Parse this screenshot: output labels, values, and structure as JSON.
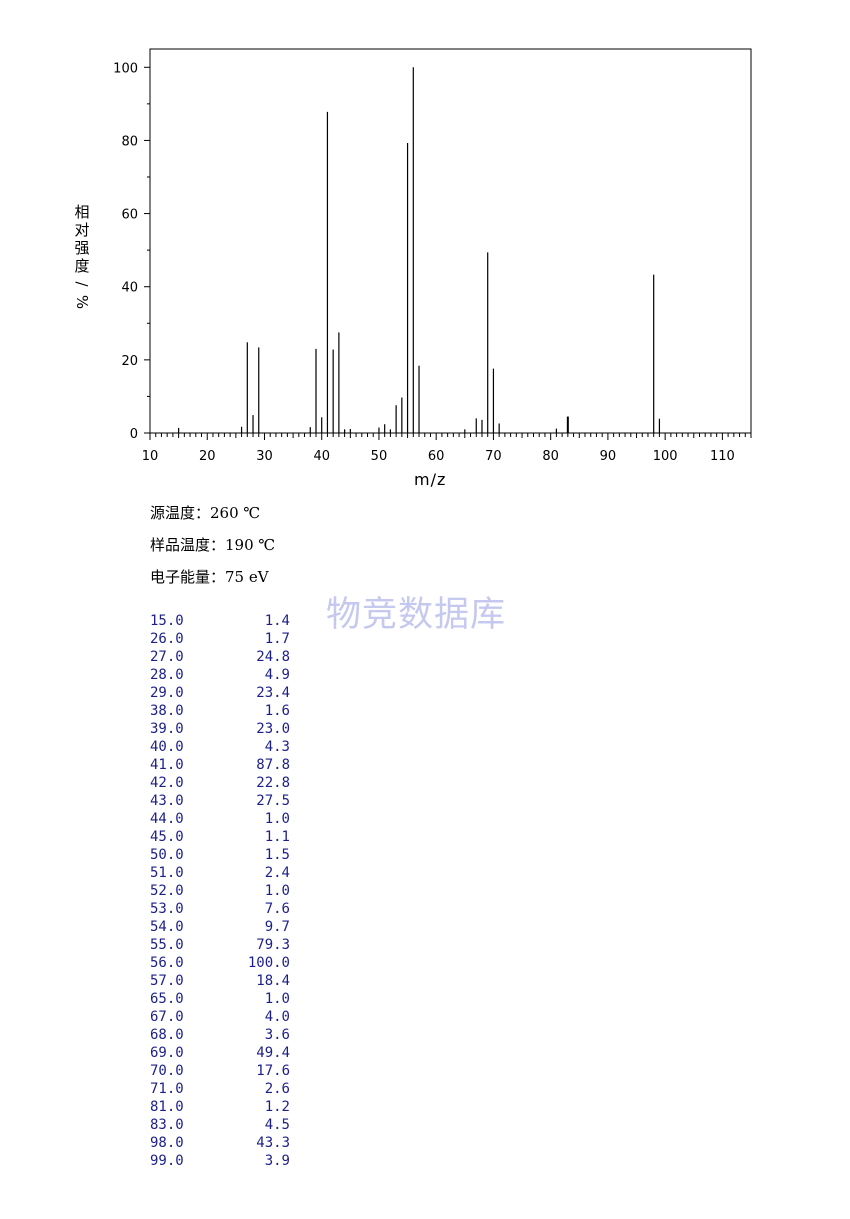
{
  "chart_data": {
    "type": "bar",
    "xlabel": "m/z",
    "ylabel": "相对强度/%",
    "xlim": [
      10,
      115
    ],
    "ylim": [
      0,
      105
    ],
    "xticks": [
      10,
      20,
      30,
      40,
      50,
      60,
      70,
      80,
      90,
      100,
      110
    ],
    "yticks": [
      0,
      20,
      40,
      60,
      80,
      100
    ],
    "peaks": [
      {
        "x": 15.0,
        "y": 1.4
      },
      {
        "x": 26.0,
        "y": 1.7
      },
      {
        "x": 27.0,
        "y": 24.8
      },
      {
        "x": 28.0,
        "y": 4.9
      },
      {
        "x": 29.0,
        "y": 23.4
      },
      {
        "x": 38.0,
        "y": 1.6
      },
      {
        "x": 39.0,
        "y": 23.0
      },
      {
        "x": 40.0,
        "y": 4.3
      },
      {
        "x": 41.0,
        "y": 87.8
      },
      {
        "x": 42.0,
        "y": 22.8
      },
      {
        "x": 43.0,
        "y": 27.5
      },
      {
        "x": 44.0,
        "y": 1.0
      },
      {
        "x": 45.0,
        "y": 1.1
      },
      {
        "x": 50.0,
        "y": 1.5
      },
      {
        "x": 51.0,
        "y": 2.4
      },
      {
        "x": 52.0,
        "y": 1.0
      },
      {
        "x": 53.0,
        "y": 7.6
      },
      {
        "x": 54.0,
        "y": 9.7
      },
      {
        "x": 55.0,
        "y": 79.3
      },
      {
        "x": 56.0,
        "y": 100.0
      },
      {
        "x": 57.0,
        "y": 18.4
      },
      {
        "x": 65.0,
        "y": 1.0
      },
      {
        "x": 67.0,
        "y": 4.0
      },
      {
        "x": 68.0,
        "y": 3.6
      },
      {
        "x": 69.0,
        "y": 49.4
      },
      {
        "x": 70.0,
        "y": 17.6
      },
      {
        "x": 71.0,
        "y": 2.6
      },
      {
        "x": 81.0,
        "y": 1.2
      },
      {
        "x": 83.0,
        "y": 4.5
      },
      {
        "x": 98.0,
        "y": 43.3
      },
      {
        "x": 99.0,
        "y": 3.9
      }
    ]
  },
  "conditions": {
    "source_temp": "源温度：260 ℃",
    "sample_temp": "样品温度：190 ℃",
    "electron_energy": "电子能量：75 eV"
  },
  "watermark": "物竞数据库",
  "peak_table": [
    [
      "15.0",
      "1.4"
    ],
    [
      "26.0",
      "1.7"
    ],
    [
      "27.0",
      "24.8"
    ],
    [
      "28.0",
      "4.9"
    ],
    [
      "29.0",
      "23.4"
    ],
    [
      "38.0",
      "1.6"
    ],
    [
      "39.0",
      "23.0"
    ],
    [
      "40.0",
      "4.3"
    ],
    [
      "41.0",
      "87.8"
    ],
    [
      "42.0",
      "22.8"
    ],
    [
      "43.0",
      "27.5"
    ],
    [
      "44.0",
      "1.0"
    ],
    [
      "45.0",
      "1.1"
    ],
    [
      "50.0",
      "1.5"
    ],
    [
      "51.0",
      "2.4"
    ],
    [
      "52.0",
      "1.0"
    ],
    [
      "53.0",
      "7.6"
    ],
    [
      "54.0",
      "9.7"
    ],
    [
      "55.0",
      "79.3"
    ],
    [
      "56.0",
      "100.0"
    ],
    [
      "57.0",
      "18.4"
    ],
    [
      "65.0",
      "1.0"
    ],
    [
      "67.0",
      "4.0"
    ],
    [
      "68.0",
      "3.6"
    ],
    [
      "69.0",
      "49.4"
    ],
    [
      "70.0",
      "17.6"
    ],
    [
      "71.0",
      "2.6"
    ],
    [
      "81.0",
      "1.2"
    ],
    [
      "83.0",
      "4.5"
    ],
    [
      "98.0",
      "43.3"
    ],
    [
      "99.0",
      "3.9"
    ]
  ]
}
